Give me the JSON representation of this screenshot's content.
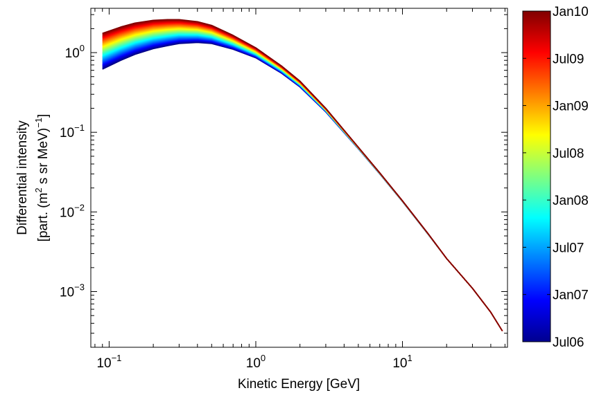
{
  "chart_data": {
    "type": "line",
    "title": "",
    "xlabel": "Kinetic Energy [GeV]",
    "ylabel_line1": "Differential intensity",
    "ylabel_line2_prefix": "[part. (m",
    "ylabel_line2_sup1": "2",
    "ylabel_line2_mid": " s sr MeV)",
    "ylabel_line2_sup2": "−1",
    "ylabel_line2_suffix": "]",
    "x_scale": "log",
    "y_scale": "log",
    "xlim": [
      0.075,
      52
    ],
    "ylim": [
      0.0002,
      3.6
    ],
    "x_ticks": [
      {
        "value": 0.1,
        "base": "10",
        "exp": "−1"
      },
      {
        "value": 1,
        "base": "10",
        "exp": "0"
      },
      {
        "value": 10,
        "base": "10",
        "exp": "1"
      }
    ],
    "y_ticks": [
      {
        "value": 0.001,
        "base": "10",
        "exp": "−3"
      },
      {
        "value": 0.01,
        "base": "10",
        "exp": "−2"
      },
      {
        "value": 0.1,
        "base": "10",
        "exp": "−1"
      },
      {
        "value": 1,
        "base": "10",
        "exp": "0"
      }
    ],
    "grid": false,
    "colorbar": {
      "colormap": "jet",
      "ticks": [
        "Jul06",
        "Jan07",
        "Jul07",
        "Jan08",
        "Jul08",
        "Jan09",
        "Jul09",
        "Jan10"
      ]
    },
    "series_count": 44,
    "energy_gev": [
      0.09,
      0.12,
      0.15,
      0.2,
      0.25,
      0.3,
      0.4,
      0.5,
      0.7,
      1.0,
      1.5,
      2.0,
      3.0,
      5.0,
      7.0,
      10.0,
      15.0,
      20.0,
      30.0,
      40.0,
      48.0
    ],
    "intensity_first_jul06": [
      0.62,
      0.8,
      0.95,
      1.12,
      1.22,
      1.3,
      1.34,
      1.3,
      1.1,
      0.86,
      0.55,
      0.37,
      0.18,
      0.062,
      0.03,
      0.0135,
      0.0052,
      0.0026,
      0.0011,
      0.00055,
      0.00032
    ],
    "intensity_last_jan10": [
      1.75,
      2.1,
      2.35,
      2.55,
      2.6,
      2.6,
      2.45,
      2.2,
      1.65,
      1.15,
      0.68,
      0.44,
      0.2,
      0.065,
      0.031,
      0.0138,
      0.0053,
      0.0026,
      0.0011,
      0.00055,
      0.00032
    ]
  }
}
